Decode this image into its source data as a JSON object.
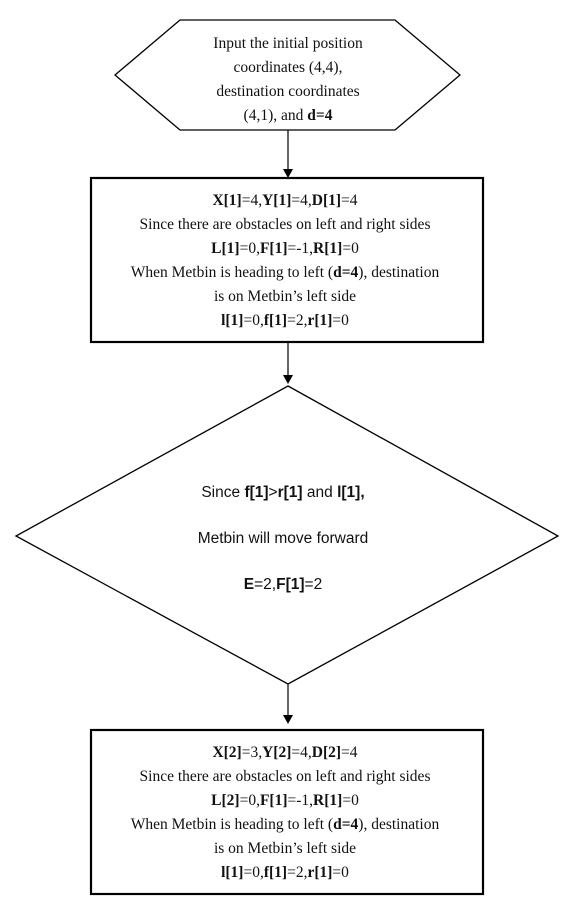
{
  "start_node": {
    "lines": [
      [
        {
          "t": "Input the initial position"
        }
      ],
      [
        {
          "t": "coordinates (4,4),"
        }
      ],
      [
        {
          "t": "destination coordinates"
        }
      ],
      [
        {
          "t": "(4,1), and "
        },
        {
          "t": "d=4",
          "b": true
        }
      ]
    ]
  },
  "process_1": {
    "lines": [
      [
        {
          "t": "X[1]",
          "b": true
        },
        {
          "t": "=4,"
        },
        {
          "t": "Y[1]",
          "b": true
        },
        {
          "t": "=4,"
        },
        {
          "t": "D[1]",
          "b": true
        },
        {
          "t": "=4"
        }
      ],
      [
        {
          "t": "Since there are obstacles on left and right sides"
        }
      ],
      [
        {
          "t": "L[1]",
          "b": true
        },
        {
          "t": "=0,"
        },
        {
          "t": "F[1]",
          "b": true
        },
        {
          "t": "=-1,"
        },
        {
          "t": "R[1]",
          "b": true
        },
        {
          "t": "=0"
        }
      ],
      [
        {
          "t": "When Metbin is heading to left ("
        },
        {
          "t": "d=4",
          "b": true
        },
        {
          "t": "), destination"
        }
      ],
      [
        {
          "t": "is on Metbin’s left side"
        }
      ],
      [
        {
          "t": "l[1]",
          "b": true
        },
        {
          "t": "=0,"
        },
        {
          "t": "f[1]",
          "b": true
        },
        {
          "t": "=2,"
        },
        {
          "t": "r[1]",
          "b": true
        },
        {
          "t": "=0"
        }
      ]
    ]
  },
  "decision": {
    "lines": [
      [
        {
          "t": "Since "
        },
        {
          "t": "f[1]",
          "b": true
        },
        {
          "t": ">"
        },
        {
          "t": "r[1]",
          "b": true
        },
        {
          "t": " and "
        },
        {
          "t": "l[1],",
          "b": true
        }
      ],
      [
        {
          "t": "Metbin will move forward"
        }
      ],
      [
        {
          "t": "E",
          "b": true
        },
        {
          "t": "=2,"
        },
        {
          "t": "F[1]",
          "b": true
        },
        {
          "t": "=2"
        }
      ]
    ]
  },
  "process_2": {
    "lines": [
      [
        {
          "t": "X[2]",
          "b": true
        },
        {
          "t": "=3,"
        },
        {
          "t": "Y[2]",
          "b": true
        },
        {
          "t": "=4,"
        },
        {
          "t": "D[2]",
          "b": true
        },
        {
          "t": "=4"
        }
      ],
      [
        {
          "t": "Since there are obstacles on left and right sides"
        }
      ],
      [
        {
          "t": "L[2]",
          "b": true
        },
        {
          "t": "=0,"
        },
        {
          "t": "F[1]",
          "b": true
        },
        {
          "t": "=-1,"
        },
        {
          "t": "R[1]",
          "b": true
        },
        {
          "t": "=0"
        }
      ],
      [
        {
          "t": "When Metbin is heading to left ("
        },
        {
          "t": "d=4",
          "b": true
        },
        {
          "t": "), destination"
        }
      ],
      [
        {
          "t": "is on Metbin’s left side"
        }
      ],
      [
        {
          "t": "l[1]",
          "b": true
        },
        {
          "t": "=0,"
        },
        {
          "t": "f[1]",
          "b": true
        },
        {
          "t": "=2,"
        },
        {
          "t": "r[1]",
          "b": true
        },
        {
          "t": "=0"
        }
      ]
    ]
  }
}
